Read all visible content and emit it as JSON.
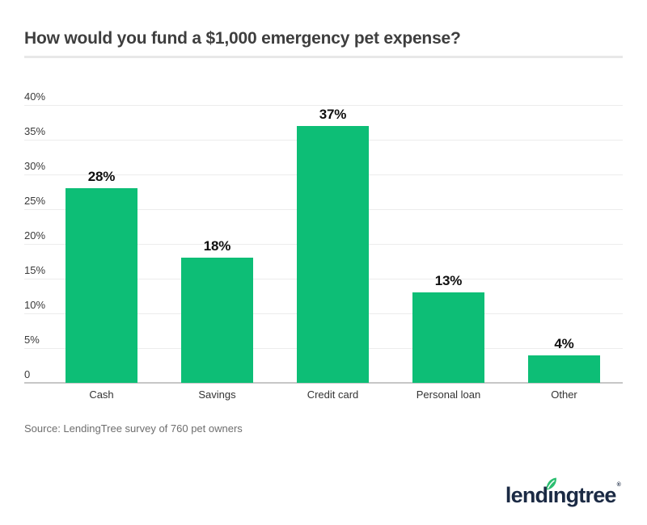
{
  "header": {
    "divider_color": "#e8e8e8"
  },
  "chart_data": {
    "type": "bar",
    "title": "How would you fund a $1,000 emergency pet expense?",
    "categories": [
      "Cash",
      "Savings",
      "Credit card",
      "Personal loan",
      "Other"
    ],
    "values": [
      28,
      18,
      37,
      13,
      4
    ],
    "value_labels": [
      "28%",
      "18%",
      "37%",
      "13%",
      "4%"
    ],
    "xlabel": "",
    "ylabel": "",
    "ylim": [
      0,
      40
    ],
    "ytick_interval": 5,
    "ytick_labels": [
      "0",
      "5%",
      "10%",
      "15%",
      "20%",
      "25%",
      "30%",
      "35%",
      "40%"
    ],
    "grid": true,
    "legend": false,
    "bar_color": "#0dbe76",
    "gridline_color": "#ececec",
    "baseline_color": "#c7c7c7"
  },
  "source": {
    "text": "Source: LendingTree survey of 760 pet owners"
  },
  "logo": {
    "part_before_leaf": "lend",
    "leaf_letter": "ı",
    "part_after_leaf": "ngtree",
    "registered": "®",
    "wordmark_color": "#1b2a44",
    "leaf_color": "#2bbe70",
    "leaf_icon": "leaf-icon"
  }
}
